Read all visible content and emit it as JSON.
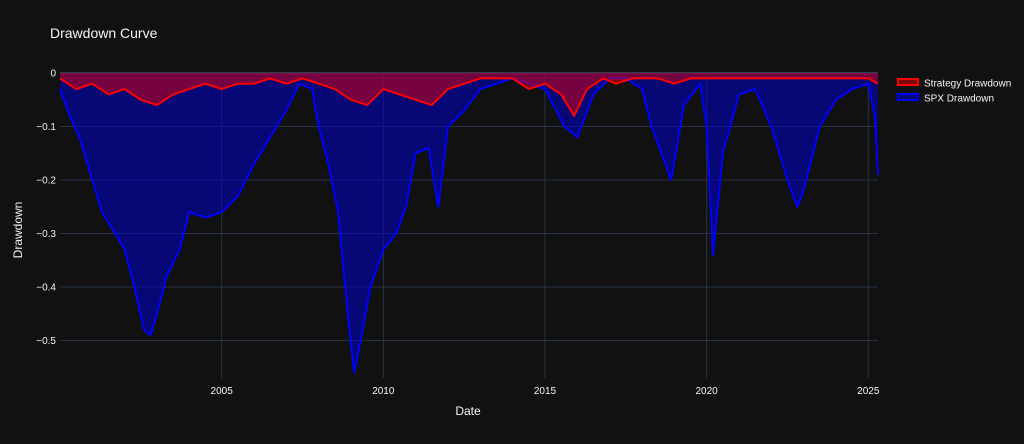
{
  "chart_data": {
    "type": "area",
    "title": "Drawdown Curve",
    "xlabel": "Date",
    "ylabel": "Drawdown",
    "xlim": [
      2000.0,
      2025.3
    ],
    "ylim": [
      -0.57,
      0.0
    ],
    "xticks": [
      2005,
      2010,
      2015,
      2020,
      2025
    ],
    "xtick_labels": [
      "2005",
      "2010",
      "2015",
      "2020",
      "2025"
    ],
    "yticks": [
      0,
      -0.1,
      -0.2,
      -0.3,
      -0.4,
      -0.5
    ],
    "ytick_labels": [
      "0",
      "−0.1",
      "−0.2",
      "−0.3",
      "−0.4",
      "−0.5"
    ],
    "grid": true,
    "legend_position": "top-right",
    "colors": {
      "background": "#111111",
      "grid": "#283442",
      "text": "#f2f5fa"
    },
    "series": [
      {
        "name": "Strategy Drawdown",
        "line_color": "#ff0000",
        "fill_color": "rgba(255,0,0,0.45)",
        "x": [
          2000.0,
          2000.5,
          2001.0,
          2001.5,
          2002.0,
          2002.5,
          2003.0,
          2003.5,
          2004.0,
          2004.5,
          2005.0,
          2005.5,
          2006.0,
          2006.5,
          2007.0,
          2007.5,
          2008.0,
          2008.5,
          2009.0,
          2009.5,
          2010.0,
          2010.5,
          2011.0,
          2011.5,
          2012.0,
          2012.5,
          2013.0,
          2013.5,
          2014.0,
          2014.5,
          2015.0,
          2015.5,
          2015.9,
          2016.3,
          2016.8,
          2017.2,
          2017.7,
          2018.0,
          2018.5,
          2019.0,
          2019.5,
          2020.0,
          2020.5,
          2021.0,
          2021.5,
          2022.0,
          2022.5,
          2023.0,
          2023.5,
          2024.0,
          2024.5,
          2025.0,
          2025.3
        ],
        "y": [
          -0.01,
          -0.03,
          -0.02,
          -0.04,
          -0.03,
          -0.05,
          -0.06,
          -0.04,
          -0.03,
          -0.02,
          -0.03,
          -0.02,
          -0.02,
          -0.01,
          -0.02,
          -0.01,
          -0.02,
          -0.03,
          -0.05,
          -0.06,
          -0.03,
          -0.04,
          -0.05,
          -0.06,
          -0.03,
          -0.02,
          -0.01,
          -0.01,
          -0.01,
          -0.03,
          -0.02,
          -0.04,
          -0.08,
          -0.03,
          -0.01,
          -0.02,
          -0.01,
          -0.01,
          -0.01,
          -0.02,
          -0.01,
          -0.01,
          -0.01,
          -0.01,
          -0.01,
          -0.01,
          -0.01,
          -0.01,
          -0.01,
          -0.01,
          -0.01,
          -0.01,
          -0.02
        ]
      },
      {
        "name": "SPX Drawdown",
        "line_color": "#0000ff",
        "fill_color": "rgba(0,0,200,0.55)",
        "x": [
          2000.0,
          2000.3,
          2000.6,
          2001.0,
          2001.3,
          2001.7,
          2002.0,
          2002.3,
          2002.6,
          2002.8,
          2003.0,
          2003.3,
          2003.7,
          2004.0,
          2004.5,
          2005.0,
          2005.5,
          2006.0,
          2006.5,
          2007.0,
          2007.4,
          2007.8,
          2008.0,
          2008.3,
          2008.6,
          2008.9,
          2009.1,
          2009.3,
          2009.6,
          2010.0,
          2010.4,
          2010.7,
          2011.0,
          2011.4,
          2011.7,
          2012.0,
          2012.5,
          2013.0,
          2013.5,
          2014.0,
          2014.5,
          2015.0,
          2015.6,
          2016.0,
          2016.5,
          2017.0,
          2017.5,
          2018.0,
          2018.3,
          2018.9,
          2019.3,
          2019.8,
          2020.0,
          2020.2,
          2020.5,
          2021.0,
          2021.5,
          2022.0,
          2022.5,
          2022.8,
          2023.0,
          2023.5,
          2024.0,
          2024.5,
          2025.0,
          2025.2,
          2025.3
        ],
        "y": [
          -0.03,
          -0.08,
          -0.12,
          -0.2,
          -0.26,
          -0.3,
          -0.33,
          -0.4,
          -0.48,
          -0.49,
          -0.45,
          -0.38,
          -0.33,
          -0.26,
          -0.27,
          -0.26,
          -0.23,
          -0.17,
          -0.12,
          -0.07,
          -0.02,
          -0.03,
          -0.1,
          -0.17,
          -0.26,
          -0.45,
          -0.56,
          -0.5,
          -0.4,
          -0.33,
          -0.3,
          -0.25,
          -0.15,
          -0.14,
          -0.25,
          -0.1,
          -0.07,
          -0.03,
          -0.02,
          -0.01,
          -0.02,
          -0.03,
          -0.1,
          -0.12,
          -0.04,
          -0.01,
          -0.01,
          -0.03,
          -0.1,
          -0.2,
          -0.06,
          -0.02,
          -0.1,
          -0.34,
          -0.15,
          -0.04,
          -0.03,
          -0.1,
          -0.2,
          -0.25,
          -0.22,
          -0.1,
          -0.05,
          -0.03,
          -0.02,
          -0.08,
          -0.19
        ]
      }
    ]
  }
}
